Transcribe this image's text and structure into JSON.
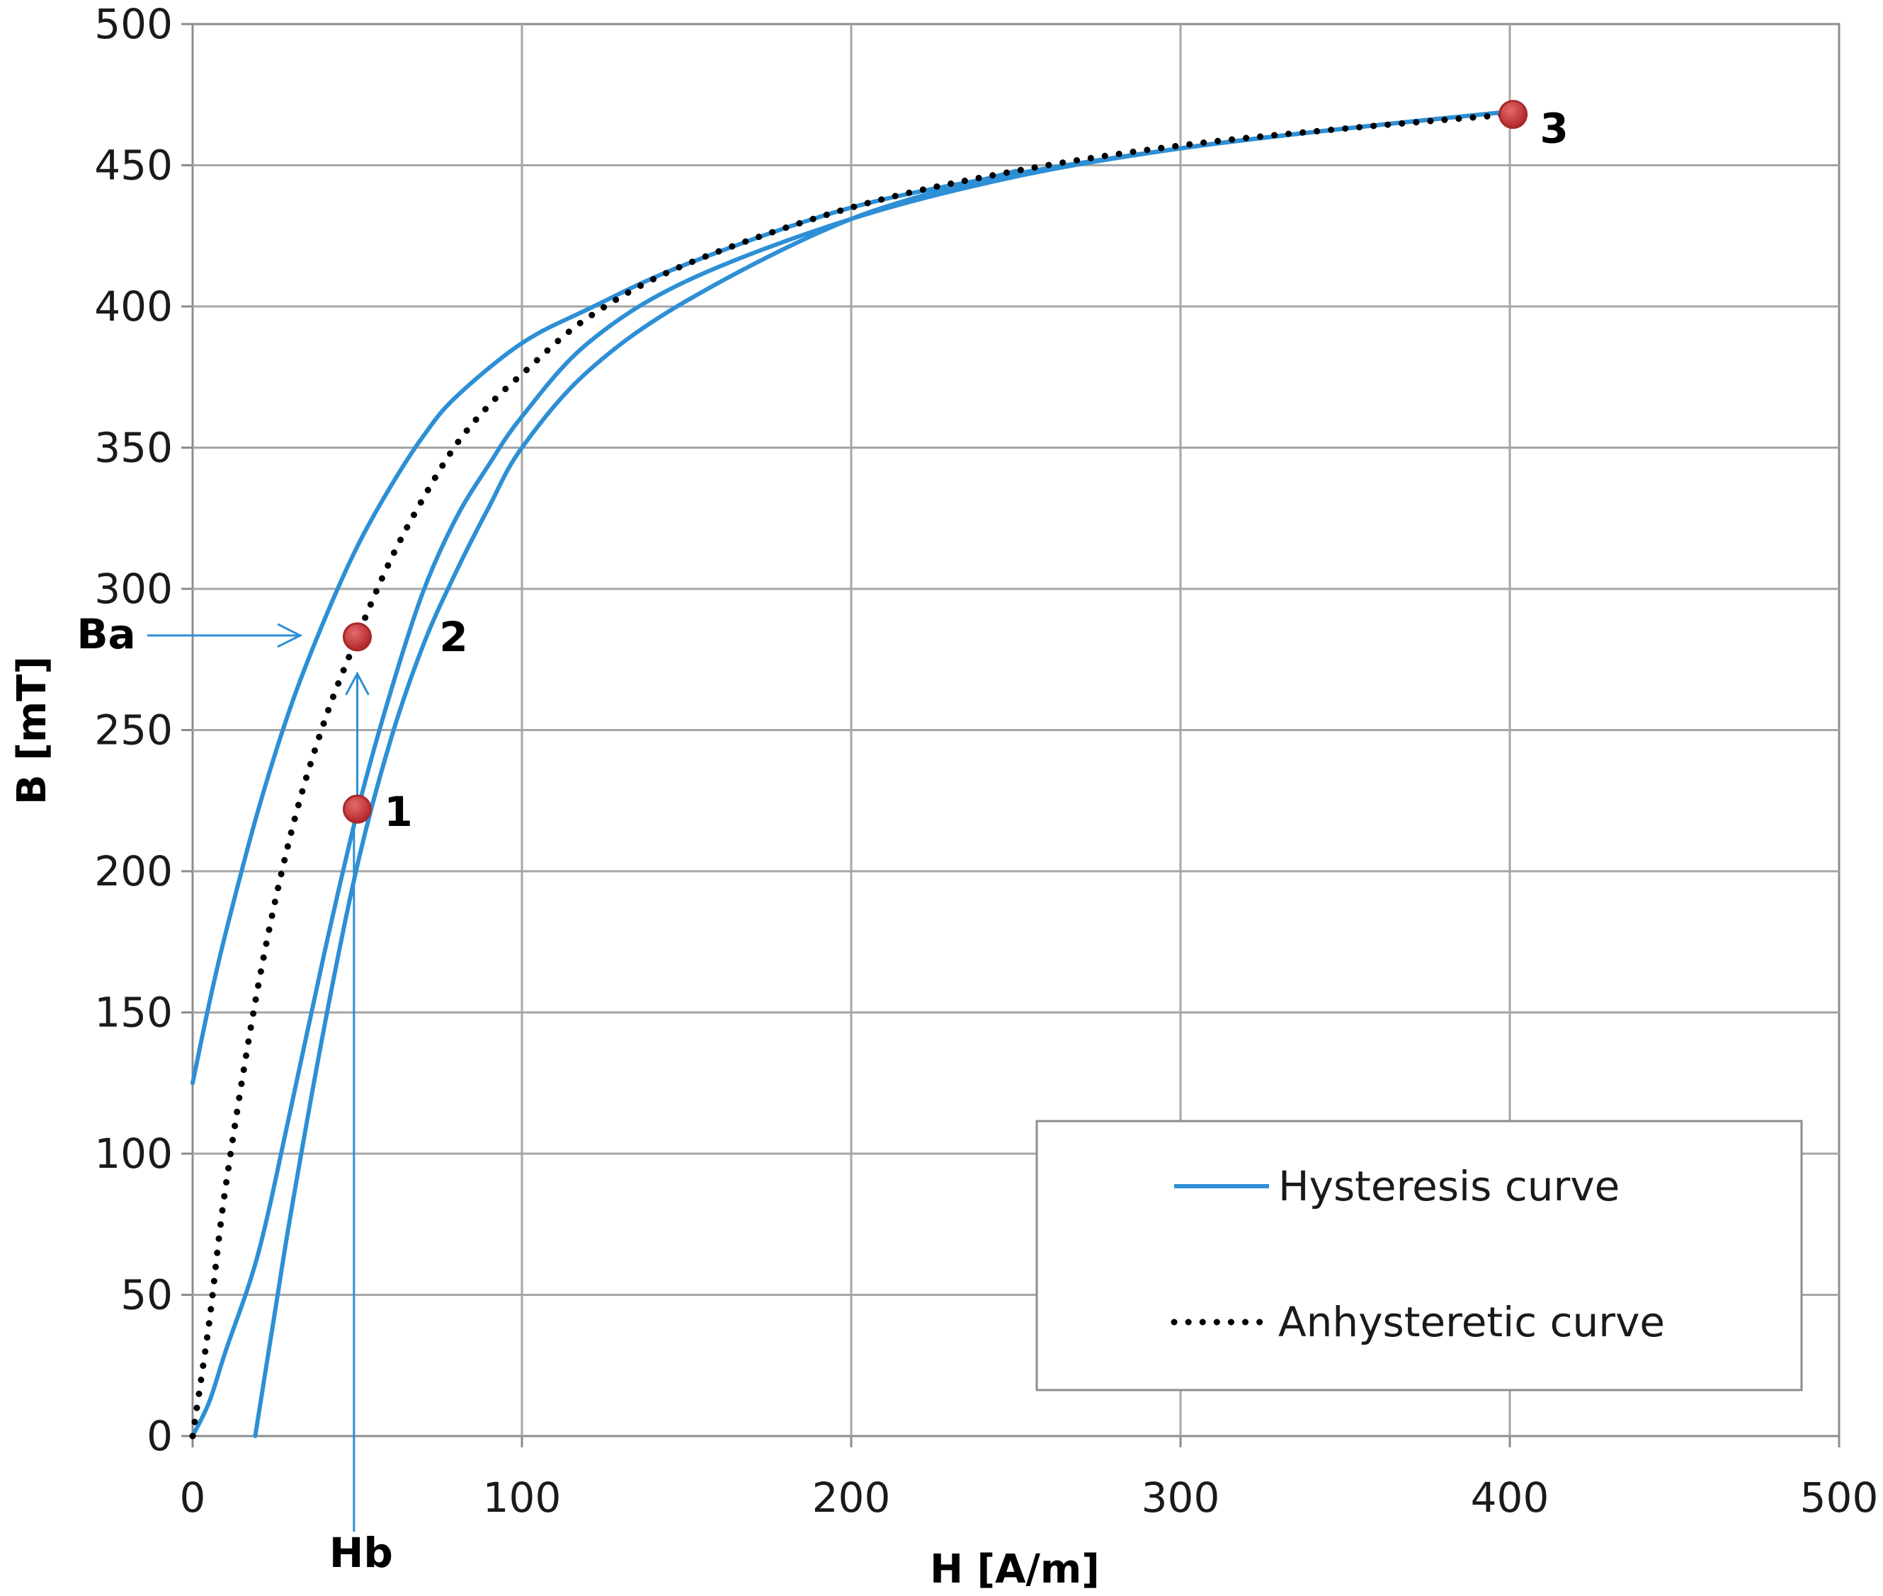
{
  "chart_data": {
    "type": "line",
    "xlabel": "H [A/m]",
    "ylabel": "B [mT]",
    "xlim": [
      0,
      500
    ],
    "ylim": [
      0,
      500
    ],
    "xticks": [
      0,
      100,
      200,
      300,
      400,
      500
    ],
    "yticks": [
      0,
      50,
      100,
      150,
      200,
      250,
      300,
      350,
      400,
      450,
      500
    ],
    "grid": true,
    "legend_position": "bottom-right",
    "colors": {
      "hysteresis": "#2d8fd5",
      "anhysteretic": "#000000",
      "marker": "#c0272d",
      "grid": "#a6a6a6",
      "axis": "#8c8c8c"
    },
    "series": [
      {
        "name": "Hysteresis curve",
        "style": "solid",
        "segments": [
          {
            "x": [
              0,
              5,
              10,
              20,
              30,
              40,
              50,
              60,
              70,
              80,
              100,
              120,
              150,
              200,
              250,
              300,
              350,
              400
            ],
            "y": [
              125,
              153,
              178,
              222,
              259,
              289,
              315,
              336,
              354,
              368,
              387,
              399,
              415,
              435,
              447,
              456,
              463,
              469
            ]
          },
          {
            "x": [
              400,
              350,
              300,
              250,
              200,
              150,
              120,
              100,
              90,
              80,
              70,
              60,
              50,
              40,
              30,
              20,
              10,
              5,
              0
            ],
            "y": [
              469,
              463,
              456,
              446,
              431,
              409,
              387,
              361,
              344,
              325,
              299,
              263,
              221,
              171,
              117,
              65,
              30,
              12,
              0
            ]
          },
          {
            "x": [
              19,
              25,
              30,
              40,
              50,
              60,
              70,
              80,
              90,
              100,
              120,
              150,
              200,
              250
            ],
            "y": [
              0,
              44,
              80,
              145,
              202,
              246,
              280,
              306,
              329,
              350,
              377,
              402,
              431,
              448
            ]
          }
        ]
      },
      {
        "name": "Anhysteretic curve",
        "style": "dotted",
        "x": [
          0,
          5,
          10,
          20,
          30,
          40,
          50,
          60,
          70,
          80,
          90,
          100,
          120,
          150,
          200,
          250,
          300,
          350,
          400
        ],
        "y": [
          0,
          40,
          88,
          160,
          214,
          253,
          283,
          310,
          332,
          351,
          365,
          376,
          396,
          415,
          435,
          448,
          457,
          463,
          468
        ]
      }
    ],
    "points": [
      {
        "label": "1",
        "x": 50,
        "y": 222
      },
      {
        "label": "2",
        "x": 50,
        "y": 283
      },
      {
        "label": "3",
        "x": 401,
        "y": 468
      }
    ],
    "annotations": [
      {
        "label": "Ba",
        "y": 283
      },
      {
        "label": "Hb",
        "x": 49
      }
    ]
  }
}
